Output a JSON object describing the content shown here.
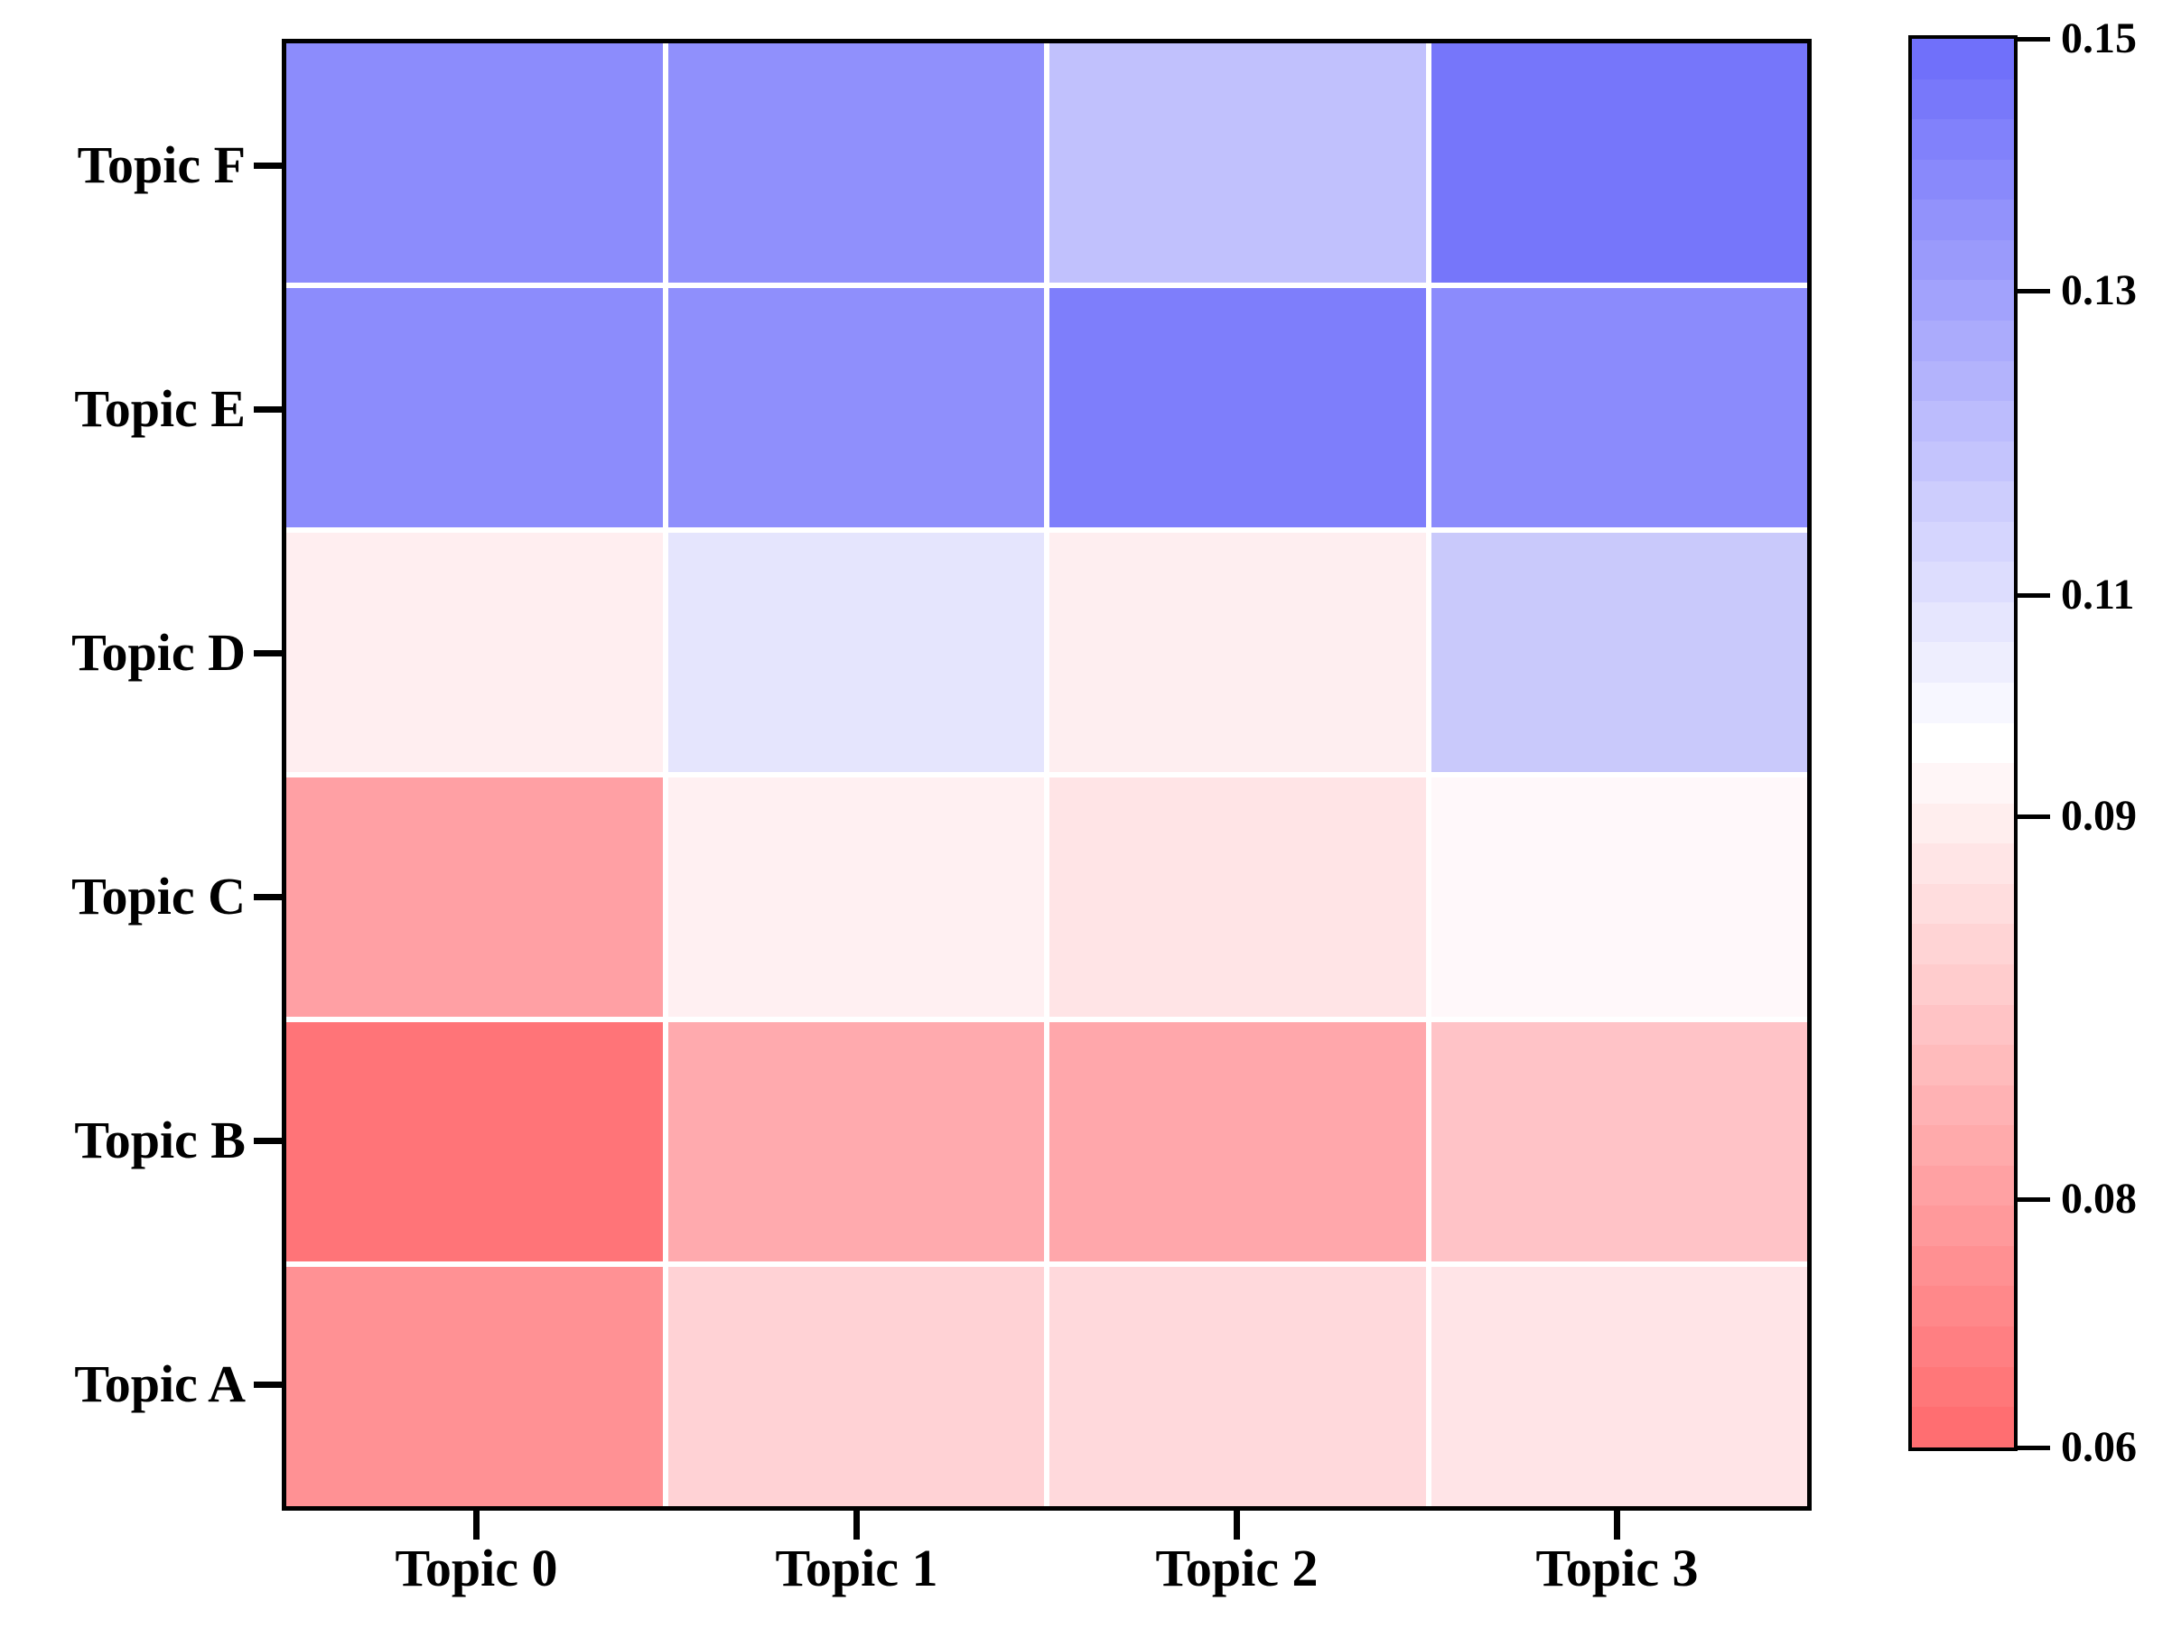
{
  "figure": {
    "background": "#ffffff",
    "axis_color": "#000000",
    "grid_line_color": "#ffffff"
  },
  "heatmap": {
    "x_labels": [
      "Topic 0",
      "Topic 1",
      "Topic 2",
      "Topic 3"
    ],
    "y_labels": [
      "Topic F",
      "Topic E",
      "Topic D",
      "Topic C",
      "Topic B",
      "Topic A"
    ],
    "cell_colors": [
      [
        "#8c8cfc",
        "#9090fc",
        "#c1c1fd",
        "#7676fa"
      ],
      [
        "#8c8cfc",
        "#8f8ffc",
        "#7e7efb",
        "#8b8bfc"
      ],
      [
        "#ffeef0",
        "#e5e5fd",
        "#feeef0",
        "#c9c9fb"
      ],
      [
        "#ffa0a4",
        "#fff0f2",
        "#ffe4e6",
        "#fff8fa"
      ],
      [
        "#ff7478",
        "#ffaaae",
        "#ffa7ab",
        "#ffc3c7"
      ],
      [
        "#ff9194",
        "#ffd2d5",
        "#ffd9dc",
        "#ffe4e7"
      ]
    ]
  },
  "colorbar": {
    "top_color": "#7070fa",
    "mid_color": "#ffffff",
    "bottom_color": "#ff6e71",
    "bands": 35,
    "ticks": [
      {
        "label": "0.15",
        "pos": 0.0
      },
      {
        "label": "0.13",
        "pos": 0.179
      },
      {
        "label": "0.11",
        "pos": 0.395
      },
      {
        "label": "0.09",
        "pos": 0.552
      },
      {
        "label": "0.08",
        "pos": 0.824
      },
      {
        "label": "0.06",
        "pos": 1.0
      }
    ]
  },
  "chart_data": {
    "type": "heatmap",
    "title": "",
    "xlabel": "",
    "ylabel": "",
    "x_categories": [
      "Topic 0",
      "Topic 1",
      "Topic 2",
      "Topic 3"
    ],
    "y_categories_top_to_bottom": [
      "Topic F",
      "Topic E",
      "Topic D",
      "Topic C",
      "Topic B",
      "Topic A"
    ],
    "values_rows_top_to_bottom": [
      [
        0.139,
        0.137,
        0.121,
        0.148
      ],
      [
        0.139,
        0.138,
        0.145,
        0.139
      ],
      [
        0.09,
        0.105,
        0.09,
        0.118
      ],
      [
        0.079,
        0.09,
        0.088,
        0.093
      ],
      [
        0.062,
        0.081,
        0.081,
        0.084
      ],
      [
        0.074,
        0.086,
        0.087,
        0.088
      ]
    ],
    "colorbar_tick_values": [
      0.15,
      0.13,
      0.11,
      0.09,
      0.08,
      0.06
    ],
    "colorbar_range": [
      0.06,
      0.15
    ],
    "colormap": "blue-white-red (blue = high, red = low)",
    "colorbar_scale": "nonlinear (quantile-spaced tick positions)",
    "legend": "none",
    "grid": "white cell separators"
  }
}
